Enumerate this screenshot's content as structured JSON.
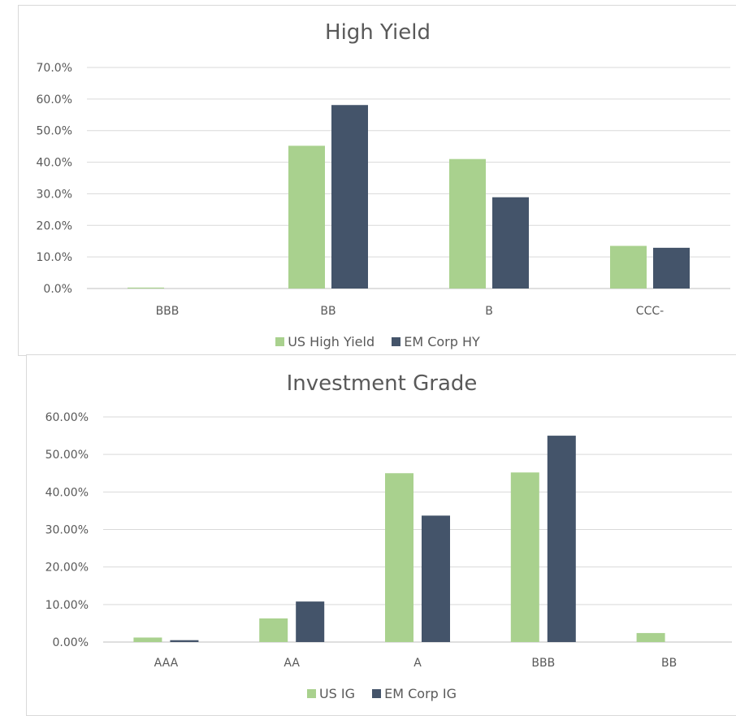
{
  "chart_data": [
    {
      "type": "bar",
      "title": "High Yield",
      "xlabel": "",
      "ylabel": "",
      "categories": [
        "BBB",
        "BB",
        "B",
        "CCC-"
      ],
      "series": [
        {
          "name": "US High Yield",
          "values": [
            0.3,
            45.2,
            41.0,
            13.5
          ]
        },
        {
          "name": "EM Corp HY",
          "values": [
            0.0,
            58.1,
            28.9,
            12.9
          ]
        }
      ],
      "ylim": [
        0,
        70
      ],
      "yticks": [
        "0.0%",
        "10.0%",
        "20.0%",
        "30.0%",
        "40.0%",
        "50.0%",
        "60.0%",
        "70.0%"
      ],
      "grid": true,
      "legend_position": "bottom",
      "colors": [
        "#a9d18e",
        "#44546a"
      ]
    },
    {
      "type": "bar",
      "title": "Investment Grade",
      "xlabel": "",
      "ylabel": "",
      "categories": [
        "AAA",
        "AA",
        "A",
        "BBB",
        "BB"
      ],
      "series": [
        {
          "name": "US IG",
          "values": [
            1.2,
            6.3,
            45.0,
            45.2,
            2.4
          ]
        },
        {
          "name": "EM Corp IG",
          "values": [
            0.5,
            10.8,
            33.7,
            55.0,
            0.0
          ]
        }
      ],
      "ylim": [
        0,
        60
      ],
      "yticks": [
        "0.00%",
        "10.00%",
        "20.00%",
        "30.00%",
        "40.00%",
        "50.00%",
        "60.00%"
      ],
      "grid": true,
      "legend_position": "bottom",
      "colors": [
        "#a9d18e",
        "#44546a"
      ]
    }
  ]
}
